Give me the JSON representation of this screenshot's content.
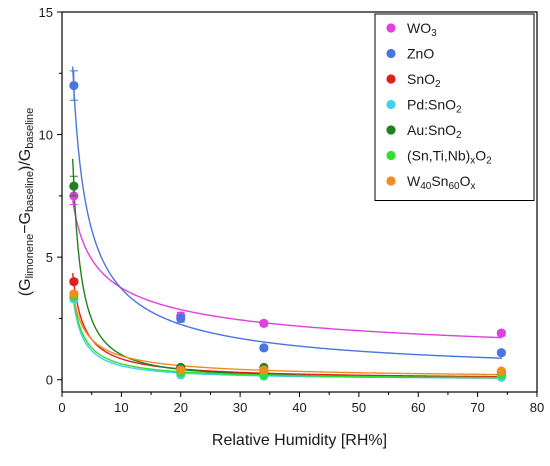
{
  "chart_data": {
    "type": "scatter",
    "xlabel": "Relative Humidity [RH%]",
    "ylabel": {
      "parts": [
        {
          "t": "(G",
          "sub": false
        },
        {
          "t": "limonene",
          "sub": true
        },
        {
          "t": "−G",
          "sub": false
        },
        {
          "t": "baseline",
          "sub": true
        },
        {
          "t": ")/G",
          "sub": false
        },
        {
          "t": "baseline",
          "sub": true
        }
      ]
    },
    "xlim": [
      0,
      80
    ],
    "ylim": [
      -0.5,
      15
    ],
    "x_ticks": [
      "0",
      "10",
      "20",
      "30",
      "40",
      "50",
      "60",
      "70",
      "80"
    ],
    "y_ticks": [
      "0",
      "5",
      "10",
      "15"
    ],
    "grid": false,
    "legend_position": "top-right",
    "x": [
      2,
      20,
      34,
      74
    ],
    "series": [
      {
        "legend": [
          {
            "t": "WO",
            "sub": false
          },
          {
            "t": "3",
            "sub": true
          }
        ],
        "color": "#e040e0",
        "values": [
          7.5,
          2.6,
          2.3,
          1.9
        ],
        "errors": [
          0.35,
          0.15,
          0.1,
          0.12
        ],
        "fit": {
          "a": 9.2,
          "b": -0.39
        }
      },
      {
        "legend": [
          {
            "t": "ZnO",
            "sub": false
          }
        ],
        "color": "#4a74e0",
        "values": [
          12.0,
          2.5,
          1.3,
          1.1
        ],
        "errors": [
          0.6,
          0.15,
          0.1,
          0.1
        ],
        "fit": {
          "a": 19.5,
          "b": -0.72
        }
      },
      {
        "legend": [
          {
            "t": "SnO",
            "sub": false
          },
          {
            "t": "2",
            "sub": true
          }
        ],
        "color": "#e02020",
        "values": [
          4.0,
          0.5,
          0.3,
          0.2
        ],
        "errors": [
          0.1,
          0.05,
          0.05,
          0.05
        ],
        "fit": {
          "a": 7.6,
          "b": -0.95
        }
      },
      {
        "legend": [
          {
            "t": "Pd:SnO",
            "sub": false
          },
          {
            "t": "2",
            "sub": true
          }
        ],
        "color": "#40d0f0",
        "values": [
          3.3,
          0.2,
          0.15,
          0.1
        ],
        "errors": [
          0.1,
          0.05,
          0.05,
          0.05
        ],
        "fit": {
          "a": 6.4,
          "b": -1.05
        }
      },
      {
        "legend": [
          {
            "t": "Au:SnO",
            "sub": false
          },
          {
            "t": "2",
            "sub": true
          }
        ],
        "color": "#208020",
        "values": [
          7.9,
          0.5,
          0.5,
          0.3
        ],
        "errors": [
          0.4,
          0.05,
          0.05,
          0.05
        ],
        "fit": {
          "a": 19.0,
          "b": -1.27
        }
      },
      {
        "legend": [
          {
            "t": "(Sn,Ti,Nb)",
            "sub": false
          },
          {
            "t": "x",
            "sub": true
          },
          {
            "t": "O",
            "sub": false
          },
          {
            "t": "2",
            "sub": true
          }
        ],
        "color": "#30e030",
        "values": [
          3.4,
          0.3,
          0.2,
          0.2
        ],
        "errors": [
          0.1,
          0.05,
          0.05,
          0.05
        ],
        "fit": {
          "a": 6.5,
          "b": -1.0
        }
      },
      {
        "legend": [
          {
            "t": "W",
            "sub": false
          },
          {
            "t": "40",
            "sub": true
          },
          {
            "t": "Sn",
            "sub": false
          },
          {
            "t": "60",
            "sub": true
          },
          {
            "t": "O",
            "sub": false
          },
          {
            "t": "x",
            "sub": true
          }
        ],
        "color": "#f08c20",
        "values": [
          3.5,
          0.4,
          0.4,
          0.35
        ],
        "errors": [
          0.1,
          0.05,
          0.05,
          0.05
        ],
        "fit": {
          "a": 5.6,
          "b": -0.76
        }
      }
    ],
    "fit_color_mix": {
      "color": "#a0a000"
    }
  }
}
